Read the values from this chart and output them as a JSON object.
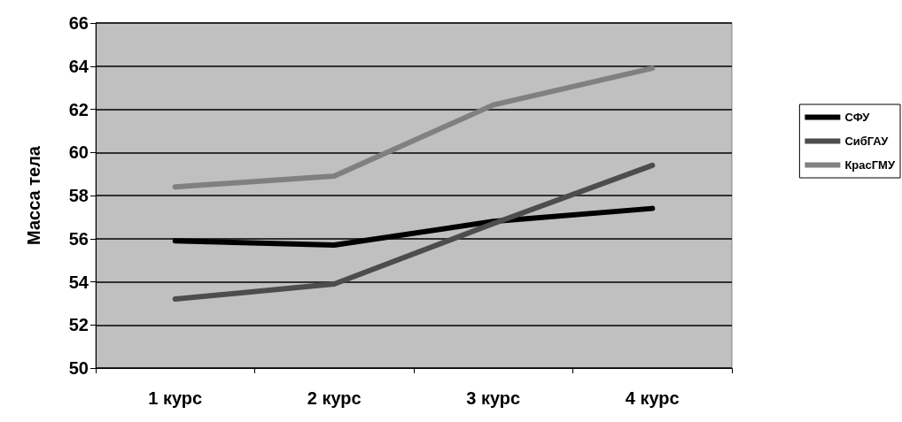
{
  "chart_data": {
    "type": "line",
    "ylabel": "Масса тела",
    "categories": [
      "1 курс",
      "2 курс",
      "3 курс",
      "4 курс"
    ],
    "series": [
      {
        "name": "СФУ",
        "color": "#000000",
        "values": [
          55.9,
          55.7,
          56.8,
          57.4
        ]
      },
      {
        "name": "СибГАУ",
        "color": "#4d4d4d",
        "values": [
          53.2,
          53.9,
          56.7,
          59.4
        ]
      },
      {
        "name": "КрасГМУ",
        "color": "#808080",
        "values": [
          58.4,
          58.9,
          62.2,
          63.9
        ]
      }
    ],
    "ylim": [
      50,
      66
    ],
    "yticks": [
      50,
      52,
      54,
      56,
      58,
      60,
      62,
      64,
      66
    ],
    "grid": "y",
    "legend": "right",
    "marker": "none",
    "line_style": "solid"
  }
}
